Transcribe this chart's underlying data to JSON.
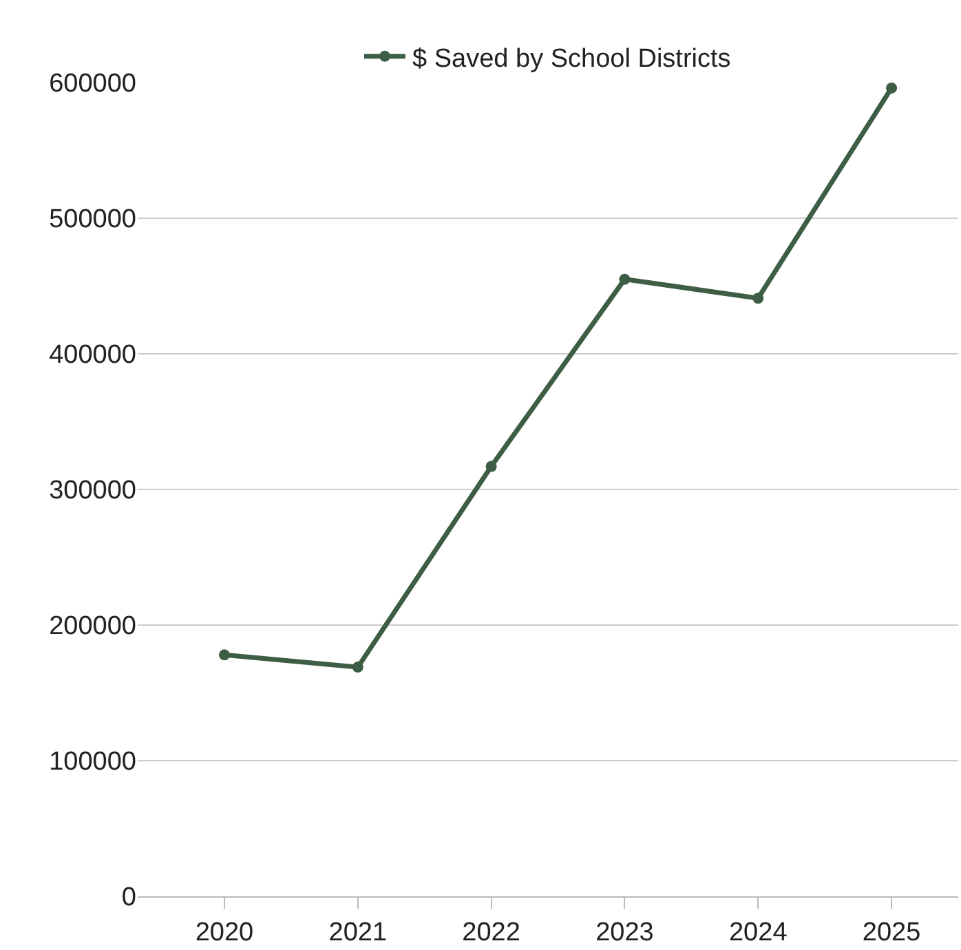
{
  "chart_data": {
    "type": "line",
    "categories": [
      "2020",
      "2021",
      "2022",
      "2023",
      "2024",
      "2025"
    ],
    "series": [
      {
        "name": "$ Saved by School Districts",
        "color": "#3d5e45",
        "values": [
          178000,
          169000,
          317000,
          455000,
          441000,
          596000
        ]
      }
    ],
    "ylim": [
      0,
      600000
    ],
    "yticks": [
      0,
      100000,
      200000,
      300000,
      400000,
      500000,
      600000
    ],
    "grid": "y",
    "legend": "top",
    "marker": "circle",
    "line_style": "solid"
  }
}
